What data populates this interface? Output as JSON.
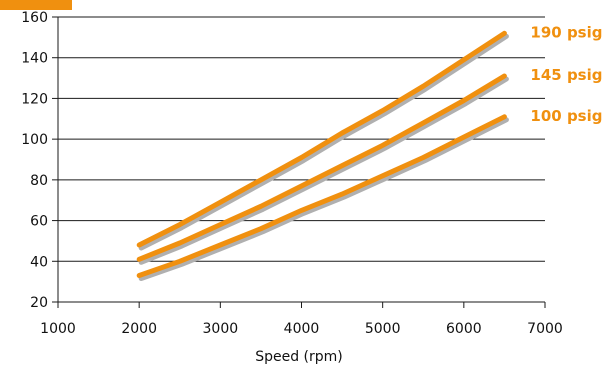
{
  "colors": {
    "accent": "#f0900f",
    "series_line": "#f0900f",
    "series_shadow": "#b0b0b0",
    "grid": "#1a1a1a",
    "axis": "#1a1a1a"
  },
  "chart_data": {
    "type": "line",
    "title": "",
    "xlabel": "Speed (rpm)",
    "ylabel": "",
    "xlim": [
      1000,
      7000
    ],
    "ylim": [
      20,
      160
    ],
    "x_ticks": [
      "1000",
      "2000",
      "3000",
      "4000",
      "5000",
      "6000",
      "7000"
    ],
    "y_ticks": [
      "20",
      "40",
      "60",
      "80",
      "100",
      "120",
      "140",
      "160"
    ],
    "y_tick_values": [
      20,
      40,
      60,
      80,
      100,
      120,
      140,
      160
    ],
    "x_tick_values": [
      1000,
      2000,
      3000,
      4000,
      5000,
      6000,
      7000
    ],
    "grid": "horizontal",
    "legend": "direct labels at line ends",
    "series": [
      {
        "name": "190 psig",
        "x": [
          2000,
          2500,
          3000,
          3500,
          4000,
          4500,
          5000,
          5500,
          6000,
          6500
        ],
        "y": [
          48,
          58,
          69,
          80,
          91,
          103,
          114,
          126,
          139,
          152
        ]
      },
      {
        "name": "145 psig",
        "x": [
          2000,
          2500,
          3000,
          3500,
          4000,
          4500,
          5000,
          5500,
          6000,
          6500
        ],
        "y": [
          41,
          49,
          58,
          67,
          77,
          87,
          97,
          108,
          119,
          131
        ]
      },
      {
        "name": "100 psig",
        "x": [
          2000,
          2500,
          3000,
          3500,
          4000,
          4500,
          5000,
          5500,
          6000,
          6500
        ],
        "y": [
          33,
          40,
          48,
          56,
          65,
          73,
          82,
          91,
          101,
          111
        ]
      }
    ]
  }
}
